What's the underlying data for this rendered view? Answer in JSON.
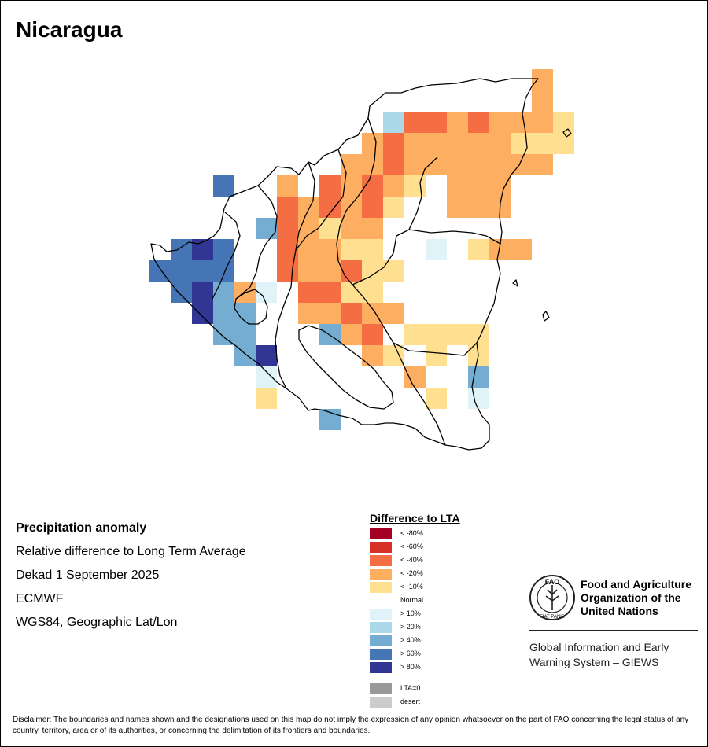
{
  "title": "Nicaragua",
  "info": {
    "heading": "Precipitation anomaly",
    "line1": "Relative difference to Long Term Average",
    "line2": "Dekad 1 September 2025",
    "line3": "ECMWF",
    "line4": "WGS84, Geographic Lat/Lon"
  },
  "legend": {
    "title": "Difference to LTA",
    "items": [
      {
        "label": "< -80%",
        "color": "#a50026"
      },
      {
        "label": "< -60%",
        "color": "#d73027"
      },
      {
        "label": "< -40%",
        "color": "#f46d43"
      },
      {
        "label": "< -20%",
        "color": "#fdae61"
      },
      {
        "label": "< -10%",
        "color": "#fee090"
      },
      {
        "label": "Normal",
        "color": "#ffffff"
      },
      {
        "label": "> 10%",
        "color": "#e0f3f8"
      },
      {
        "label": "> 20%",
        "color": "#abd9e9"
      },
      {
        "label": "> 40%",
        "color": "#74add1"
      },
      {
        "label": "> 60%",
        "color": "#4575b4"
      },
      {
        "label": "> 80%",
        "color": "#313695"
      }
    ],
    "extra": [
      {
        "label": "LTA=0",
        "color": "#999999"
      },
      {
        "label": "desert",
        "color": "#cccccc"
      }
    ]
  },
  "fao": {
    "name_line1": "Food and Agriculture",
    "name_line2": "Organization of the",
    "name_line3": "United Nations",
    "logo_letters": "FAO",
    "logo_motto": "FIAT PANIS",
    "giews_line1": "Global Information and Early",
    "giews_line2": "Warning System – GIEWS"
  },
  "disclaimer": "Disclaimer: The boundaries and names shown and the designations used on this map do not imply the expression of any opinion whatsoever on the part of FAO concerning the legal status of any country, territory, area or of its authorities, or concerning the delimitation of its frontiers and boundaries.",
  "grid": {
    "origin_col": "A",
    "cells": [
      [
        "O",
        "O",
        "O",
        "O",
        "O",
        "O",
        "O",
        "O",
        "O",
        "O",
        "O",
        "O",
        "O",
        "O",
        "O",
        "O",
        "O",
        "O",
        "m",
        "O",
        "O",
        "O",
        "O"
      ],
      [
        "O",
        "O",
        "O",
        "O",
        "O",
        "O",
        "O",
        "O",
        "O",
        "O",
        "O",
        "O",
        "O",
        "O",
        "O",
        "O",
        "O",
        "O",
        "m",
        "O",
        "O",
        "O",
        "O"
      ],
      [
        "O",
        "O",
        "O",
        "O",
        "O",
        "O",
        "O",
        "O",
        "O",
        "O",
        "O",
        "l",
        "s",
        "s",
        "m",
        "s",
        "m",
        "m",
        "m",
        "y",
        "O",
        "O",
        "O"
      ],
      [
        "O",
        "O",
        "O",
        "O",
        "O",
        "O",
        "O",
        "O",
        "O",
        "O",
        "m",
        "s",
        "m",
        "m",
        "m",
        "m",
        "m",
        "y",
        "y",
        "y",
        "O",
        "O",
        "O"
      ],
      [
        "O",
        "O",
        "O",
        "O",
        "O",
        "O",
        "O",
        "O",
        "O",
        "m",
        "m",
        "s",
        "m",
        "m",
        "m",
        "m",
        "m",
        "m",
        "m",
        "O",
        "O",
        "O",
        "O"
      ],
      [
        "O",
        "O",
        "O",
        "b",
        "O",
        "O",
        "m",
        "O",
        "s",
        "m",
        "s",
        "m",
        "y",
        "O",
        "m",
        "m",
        "m",
        "O",
        "O",
        "O",
        "O",
        "O",
        "O"
      ],
      [
        "O",
        "O",
        "O",
        "O",
        "O",
        "O",
        "s",
        "m",
        "s",
        "m",
        "s",
        "y",
        "O",
        "O",
        "m",
        "m",
        "m",
        "O",
        "O",
        "O",
        "O",
        "O",
        "O"
      ],
      [
        "O",
        "O",
        "O",
        "O",
        "O",
        "p",
        "s",
        "m",
        "y",
        "m",
        "m",
        "O",
        "O",
        "O",
        "O",
        "O",
        "O",
        "O",
        "O",
        "O",
        "O",
        "O",
        "O"
      ],
      [
        "O",
        "B",
        "V",
        "b",
        "O",
        "O",
        "s",
        "m",
        "m",
        "y",
        "y",
        "O",
        "O",
        "n",
        "O",
        "y",
        "m",
        "m",
        "O",
        "O",
        "O",
        "O",
        "O"
      ],
      [
        "B",
        "b",
        "b",
        "b",
        "O",
        "O",
        "s",
        "m",
        "m",
        "s",
        "y",
        "y",
        "O",
        "O",
        "O",
        "O",
        "O",
        "O",
        "O",
        "O",
        "O",
        "O",
        "O"
      ],
      [
        "O",
        "b",
        "V",
        "p",
        "m",
        "n",
        "O",
        "s",
        "s",
        "y",
        "y",
        "O",
        "O",
        "O",
        "O",
        "O",
        "O",
        "O",
        "O",
        "O",
        "O",
        "O",
        "O"
      ],
      [
        "O",
        "O",
        "V",
        "p",
        "p",
        "O",
        "O",
        "m",
        "m",
        "s",
        "m",
        "m",
        "O",
        "O",
        "O",
        "O",
        "O",
        "O",
        "O",
        "O",
        "O",
        "O",
        "O"
      ],
      [
        "O",
        "O",
        "O",
        "p",
        "p",
        "O",
        "O",
        "O",
        "p",
        "m",
        "s",
        "O",
        "y",
        "y",
        "y",
        "y",
        "O",
        "O",
        "O",
        "O",
        "O",
        "O",
        "O"
      ],
      [
        "O",
        "O",
        "O",
        "O",
        "p",
        "V",
        "O",
        "O",
        "O",
        "O",
        "m",
        "y",
        "O",
        "y",
        "O",
        "y",
        "O",
        "O",
        "O",
        "O",
        "O",
        "O",
        "O"
      ],
      [
        "O",
        "O",
        "O",
        "O",
        "O",
        "n",
        "O",
        "O",
        "O",
        "O",
        "O",
        "O",
        "m",
        "O",
        "O",
        "p",
        "O",
        "O",
        "O",
        "O",
        "O",
        "O",
        "O"
      ],
      [
        "O",
        "O",
        "O",
        "O",
        "O",
        "y",
        "O",
        "O",
        "O",
        "O",
        "O",
        "O",
        "O",
        "y",
        "O",
        "n",
        "O",
        "O",
        "O",
        "O",
        "O",
        "O",
        "O"
      ],
      [
        "O",
        "O",
        "O",
        "O",
        "O",
        "O",
        "O",
        "O",
        "p",
        "O",
        "O",
        "O",
        "O",
        "O",
        "O",
        "O",
        "O",
        "O",
        "O",
        "O",
        "O",
        "O",
        "O"
      ]
    ]
  }
}
